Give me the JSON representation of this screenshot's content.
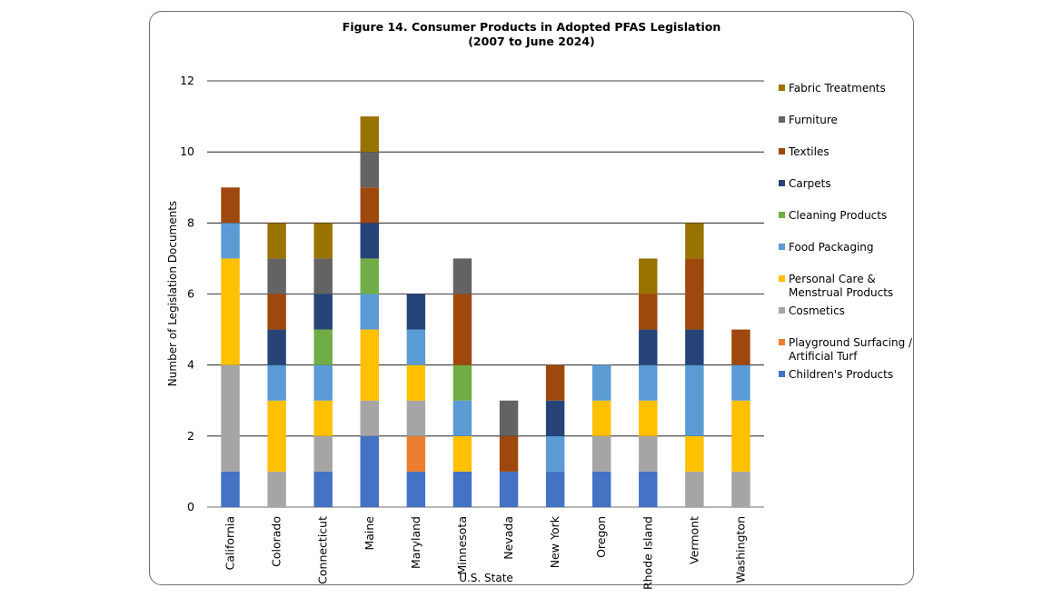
{
  "chart_data": {
    "type": "bar",
    "stacked": true,
    "title": "Figure 14. Consumer Products in Adopted PFAS Legislation",
    "subtitle": "(2007 to June 2024)",
    "xlabel": "U.S. State",
    "ylabel": "Number of Legislation Documents",
    "ylim": [
      0,
      12
    ],
    "yticks": [
      0,
      2,
      4,
      6,
      8,
      10,
      12
    ],
    "grid": true,
    "legend_position": "right",
    "categories": [
      "California",
      "Colorado",
      "Connecticut",
      "Maine",
      "Maryland",
      "Minnesota",
      "Nevada",
      "New York",
      "Oregon",
      "Rhode Island",
      "Vermont",
      "Washington"
    ],
    "series": [
      {
        "name": "Children's Products",
        "legend_lines": [
          "Children's Products"
        ],
        "color": "#4472C4",
        "values": [
          1,
          0,
          1,
          2,
          1,
          1,
          1,
          1,
          1,
          1,
          0,
          0
        ]
      },
      {
        "name": "Playground Surfacing / Artificial Turf",
        "legend_lines": [
          "Playground Surfacing /",
          "Artificial Turf"
        ],
        "color": "#ED7D31",
        "values": [
          0,
          0,
          0,
          0,
          1,
          0,
          0,
          0,
          0,
          0,
          0,
          0
        ]
      },
      {
        "name": "Cosmetics",
        "legend_lines": [
          "Cosmetics"
        ],
        "color": "#A5A5A5",
        "values": [
          3,
          1,
          1,
          1,
          1,
          0,
          0,
          0,
          1,
          1,
          1,
          1
        ]
      },
      {
        "name": "Personal Care & Menstrual Products",
        "legend_lines": [
          "Personal Care &",
          "Menstrual Products"
        ],
        "color": "#FFC000",
        "values": [
          3,
          2,
          1,
          2,
          1,
          1,
          0,
          0,
          1,
          1,
          1,
          2
        ]
      },
      {
        "name": "Food Packaging",
        "legend_lines": [
          "Food Packaging"
        ],
        "color": "#5B9BD5",
        "values": [
          1,
          1,
          1,
          1,
          1,
          1,
          0,
          1,
          1,
          1,
          2,
          1
        ]
      },
      {
        "name": "Cleaning Products",
        "legend_lines": [
          "Cleaning Products"
        ],
        "color": "#70AD47",
        "values": [
          0,
          0,
          1,
          1,
          0,
          1,
          0,
          0,
          0,
          0,
          0,
          0
        ]
      },
      {
        "name": "Carpets",
        "legend_lines": [
          "Carpets"
        ],
        "color": "#264478",
        "values": [
          0,
          1,
          1,
          1,
          1,
          0,
          0,
          1,
          0,
          1,
          1,
          0
        ]
      },
      {
        "name": "Textiles",
        "legend_lines": [
          "Textiles"
        ],
        "color": "#9E480E",
        "values": [
          1,
          1,
          0,
          1,
          0,
          2,
          1,
          1,
          0,
          1,
          2,
          1
        ]
      },
      {
        "name": "Furniture",
        "legend_lines": [
          "Furniture"
        ],
        "color": "#636363",
        "values": [
          0,
          1,
          1,
          1,
          0,
          1,
          1,
          0,
          0,
          0,
          0,
          0
        ]
      },
      {
        "name": "Fabric Treatments",
        "legend_lines": [
          "Fabric Treatments"
        ],
        "color": "#997300",
        "values": [
          0,
          1,
          1,
          1,
          0,
          0,
          0,
          0,
          0,
          1,
          1,
          0
        ]
      }
    ]
  }
}
